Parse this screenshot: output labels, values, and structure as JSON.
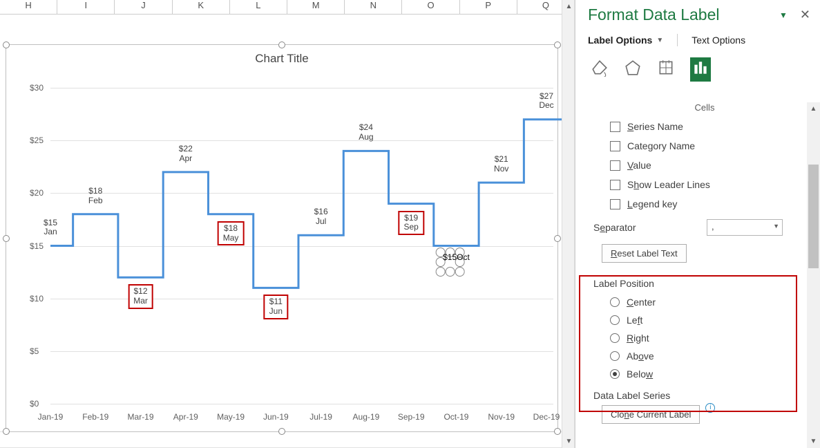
{
  "columns": [
    "H",
    "I",
    "J",
    "K",
    "L",
    "M",
    "N",
    "O",
    "P",
    "Q"
  ],
  "pane": {
    "title": "Format Data Label",
    "tab_label_options": "Label Options",
    "tab_text_options": "Text Options",
    "cells_heading": "Cells",
    "chk_series_name": "Series Name",
    "chk_category_name": "Category Name",
    "chk_value": "Value",
    "chk_leader": "Show Leader Lines",
    "chk_legend_key": "Legend key",
    "separator_label": "Separator",
    "separator_value": ",",
    "reset_btn": "Reset Label Text",
    "label_position_title": "Label Position",
    "radios": {
      "center": "Center",
      "left": "Left",
      "right": "Right",
      "above": "Above",
      "below": "Below"
    },
    "selected_radio": "below",
    "series_title": "Data Label Series",
    "clone_btn": "Clone Current Label",
    "icons_selected_color": "#1e7a42"
  },
  "chart": {
    "title": "Chart Title",
    "type": "step-line",
    "line_color": "#4a90d9",
    "line_width": 3,
    "grid_color": "#e0e0e0",
    "background_color": "#ffffff",
    "redbox_color": "#c00000",
    "ylim": [
      0,
      30
    ],
    "ytick_step": 5,
    "categories": [
      "Jan-19",
      "Feb-19",
      "Mar-19",
      "Apr-19",
      "May-19",
      "Jun-19",
      "Jul-19",
      "Aug-19",
      "Sep-19",
      "Oct-19",
      "Nov-19",
      "Dec-19"
    ],
    "values": [
      15,
      18,
      12,
      22,
      18,
      11,
      16,
      24,
      19,
      15,
      21,
      27
    ],
    "months_short": [
      "Jan",
      "Feb",
      "Mar",
      "Apr",
      "May",
      "Jun",
      "Jul",
      "Aug",
      "Sep",
      "Oct",
      "Nov",
      "Dec"
    ],
    "label_pos": [
      "above",
      "above",
      "below",
      "above",
      "below",
      "below",
      "above",
      "above",
      "below",
      "below",
      "above",
      "above"
    ],
    "redboxed": [
      false,
      false,
      true,
      false,
      true,
      true,
      false,
      false,
      true,
      false,
      false,
      false
    ],
    "octsel_index": 9,
    "label_fontsize": 12,
    "axis_fontsize": 12
  }
}
